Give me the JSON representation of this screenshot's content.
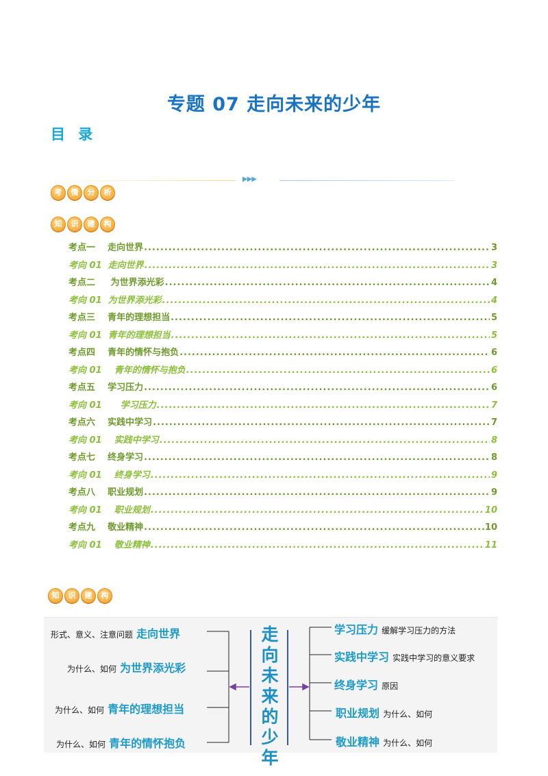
{
  "title": "专题 07  走向未来的少年",
  "toc_heading": "目 录",
  "badges": {
    "analysis": [
      "考",
      "情",
      "分",
      "析"
    ],
    "structure": [
      "知",
      "识",
      "建",
      "构"
    ]
  },
  "toc": [
    {
      "label": "考点一    走向世界",
      "page": "3",
      "kind": "point"
    },
    {
      "label": "考向 01  走向世界",
      "page": "3",
      "kind": "dir"
    },
    {
      "label": "考点二     为世界添光彩",
      "page": "4",
      "kind": "point"
    },
    {
      "label": "考向 01  为世界添光彩",
      "page": "4",
      "kind": "dir"
    },
    {
      "label": "考点三    青年的理想担当",
      "page": "5",
      "kind": "point"
    },
    {
      "label": "考向 01  青年的理想担当",
      "page": "5",
      "kind": "dir"
    },
    {
      "label": "考点四    青年的情怀与抱负",
      "page": "6",
      "kind": "point"
    },
    {
      "label": "考向 01    青年的情怀与抱负",
      "page": "6",
      "kind": "dir"
    },
    {
      "label": "考点五    学习压力",
      "page": "6",
      "kind": "point"
    },
    {
      "label": "考向 01      学习压力",
      "page": "7",
      "kind": "dir"
    },
    {
      "label": "考点六    实践中学习",
      "page": "7",
      "kind": "point"
    },
    {
      "label": "考向 01    实践中学习",
      "page": "8",
      "kind": "dir"
    },
    {
      "label": "考点七    终身学习",
      "page": "8",
      "kind": "point"
    },
    {
      "label": "考向 01    终身学习",
      "page": "9",
      "kind": "dir"
    },
    {
      "label": "考点八    职业规划",
      "page": "9",
      "kind": "point"
    },
    {
      "label": "考向 01    职业规划",
      "page": "10",
      "kind": "dir"
    },
    {
      "label": "考点九    敬业精神",
      "page": "10",
      "kind": "point"
    },
    {
      "label": "考向 01    敬业精神",
      "page": "11",
      "kind": "dir"
    }
  ],
  "mindmap": {
    "center": "走向未来的少年",
    "left": [
      {
        "prefix": "形式、意义、注意问题",
        "topic": "走向世界"
      },
      {
        "prefix": "为什么、如何",
        "topic": "为世界添光彩"
      },
      {
        "prefix": "为什么、如何",
        "topic": "青年的理想担当"
      },
      {
        "prefix": "为什么、如何",
        "topic": "青年的情怀抱负"
      }
    ],
    "right": [
      {
        "topic": "学习压力",
        "suffix": "缓解学习压力的方法"
      },
      {
        "topic": "实践中学习",
        "suffix": "实践中学习的意义要求"
      },
      {
        "topic": "终身学习",
        "suffix": "原因"
      },
      {
        "topic": "职业规划",
        "suffix": "为什么、如何"
      },
      {
        "topic": "敬业精神",
        "suffix": "为什么、如何"
      }
    ]
  }
}
